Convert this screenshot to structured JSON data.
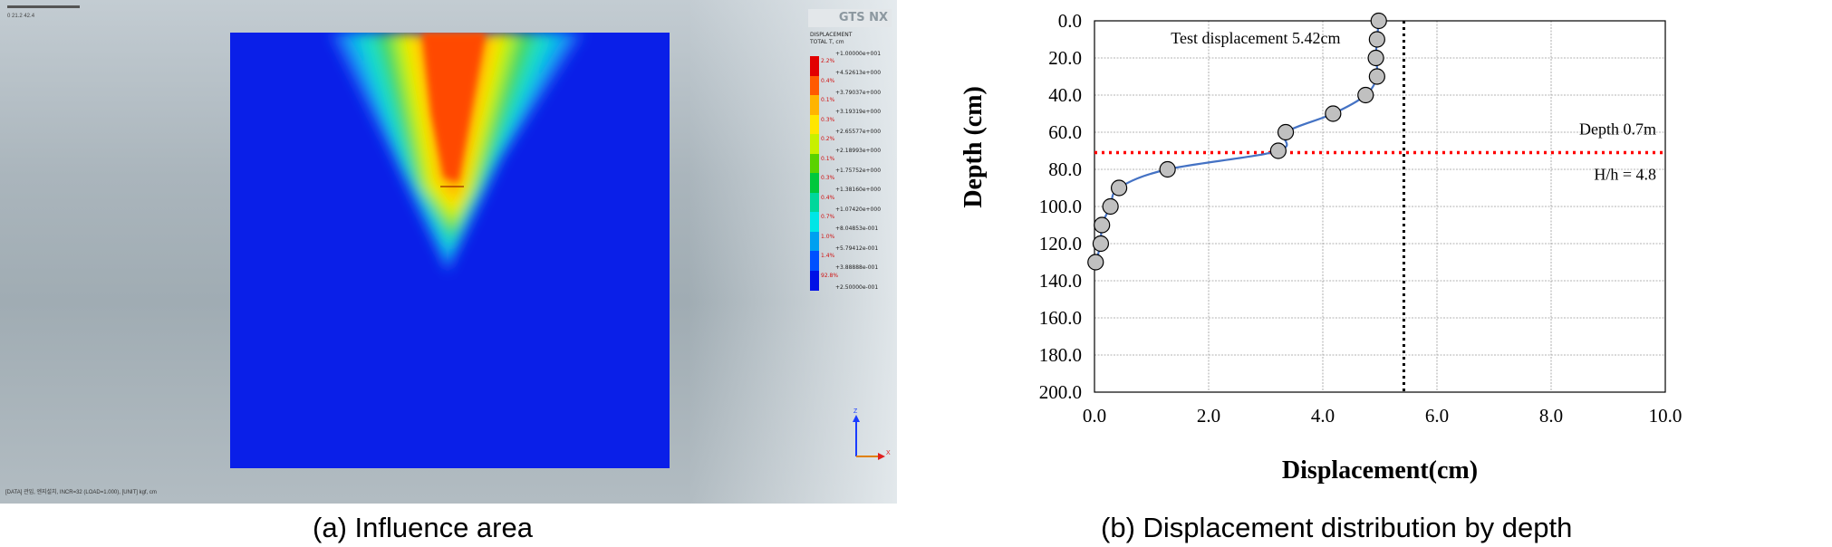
{
  "panel_a": {
    "caption": "(a) Influence area",
    "toolbar_text": "0    21.2    42.4",
    "status_text": "[DATA] 관입, 엔지설치, INCR=32 (LOAD=1.000), [UNIT] kgf, cm",
    "logo": "GTS NX",
    "legend_title_1": "DISPLACEMENT",
    "legend_title_2": "TOTAL T, cm",
    "legend_max": "+1.00000e+001",
    "legend_entries": [
      {
        "color": "#e20000",
        "pct": "2.2%",
        "value": "+4.52613e+000"
      },
      {
        "color": "#ff5a00",
        "pct": "0.4%",
        "value": "+3.79037e+000"
      },
      {
        "color": "#ffb400",
        "pct": "0.1%",
        "value": "+3.19319e+000"
      },
      {
        "color": "#ffe600",
        "pct": "0.3%",
        "value": "+2.65577e+000"
      },
      {
        "color": "#c8f000",
        "pct": "0.2%",
        "value": "+2.18993e+000"
      },
      {
        "color": "#5ad200",
        "pct": "0.1%",
        "value": "+1.75752e+000"
      },
      {
        "color": "#00c83c",
        "pct": "0.3%",
        "value": "+1.38160e+000"
      },
      {
        "color": "#00d79b",
        "pct": "0.4%",
        "value": "+1.07420e+000"
      },
      {
        "color": "#00e6e6",
        "pct": "0.7%",
        "value": "+8.04853e-001"
      },
      {
        "color": "#00a0f0",
        "pct": "1.0%",
        "value": "+5.79412e-001"
      },
      {
        "color": "#0050ff",
        "pct": "1.4%",
        "value": "+3.88888e-001"
      },
      {
        "color": "#0010e6",
        "pct": "92.8%",
        "value": "+2.50000e-001"
      }
    ],
    "axis_z": "Z",
    "axis_x": "X"
  },
  "panel_b": {
    "caption": "(b) Displacement distribution by depth"
  },
  "chart_data": {
    "type": "line",
    "xlabel": "Displacement(cm)",
    "ylabel": "Depth (cm)",
    "xlim": [
      0,
      10
    ],
    "ylim": [
      0,
      200
    ],
    "y_inverted": true,
    "x_ticks": [
      "0.0",
      "2.0",
      "4.0",
      "6.0",
      "8.0",
      "10.0"
    ],
    "y_ticks": [
      "0.0",
      "20.0",
      "40.0",
      "60.0",
      "80.0",
      "100.0",
      "120.0",
      "140.0",
      "160.0",
      "180.0",
      "200.0"
    ],
    "grid": true,
    "series": [
      {
        "color": "#4472c4",
        "marker_color": "#c0c0c0",
        "x": [
          4.98,
          4.95,
          4.93,
          4.95,
          4.75,
          4.18,
          3.35,
          3.22,
          1.28,
          0.43,
          0.28,
          0.13,
          0.11,
          0.02
        ],
        "y": [
          0,
          10,
          20,
          30,
          40,
          50,
          60,
          70,
          80,
          90,
          100,
          110,
          120,
          130
        ]
      }
    ],
    "reference_lines": [
      {
        "orientation": "vertical",
        "value": 5.42,
        "color": "#000000",
        "style": "dotted",
        "label": "Test displacement  5.42cm"
      },
      {
        "orientation": "horizontal",
        "value": 71,
        "color": "#ff0000",
        "style": "dotted",
        "label": "Depth 0.7m"
      }
    ],
    "annotations": [
      "H/h = 4.8"
    ]
  }
}
